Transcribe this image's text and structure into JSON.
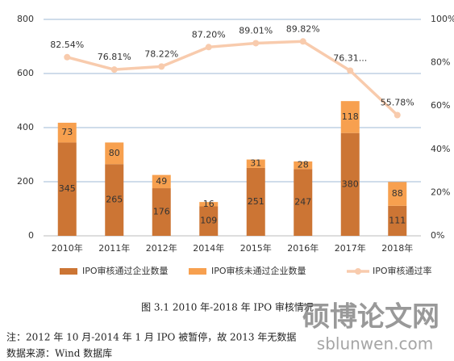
{
  "chart_data": {
    "type": "bar",
    "stacked": true,
    "categories": [
      "2010年",
      "2011年",
      "2012年",
      "2014年",
      "2015年",
      "2016年",
      "2017年",
      "2018年"
    ],
    "series": [
      {
        "name": "IPO审核通过企业数量",
        "type": "bar",
        "color": "#cc7534",
        "values": [
          345,
          265,
          176,
          109,
          251,
          247,
          380,
          111
        ]
      },
      {
        "name": "IPO审核未通过企业数量",
        "type": "bar",
        "color": "#f7a04f",
        "values": [
          73,
          80,
          49,
          16,
          31,
          28,
          118,
          88
        ]
      },
      {
        "name": "IPO审核通过率",
        "type": "line",
        "axis": "y2",
        "color": "#f8cbad",
        "values": [
          82.54,
          76.81,
          78.22,
          87.2,
          89.01,
          89.82,
          76.31,
          55.78
        ],
        "value_labels": [
          "82.54%",
          "76.81%",
          "78.22%",
          "87.20%",
          "89.01%",
          "89.82%",
          "76.31...",
          "55.78%"
        ]
      }
    ],
    "ylim": [
      0,
      800
    ],
    "yticks": [
      0,
      200,
      400,
      600,
      800
    ],
    "y2lim": [
      0,
      100
    ],
    "y2ticks": [
      {
        "value": 0,
        "label": "0%"
      },
      {
        "value": 20,
        "label": "20%"
      },
      {
        "value": 40,
        "label": "40%"
      },
      {
        "value": 60,
        "label": "60%"
      },
      {
        "value": 80,
        "label": "80%"
      },
      {
        "value": 100,
        "label": "100%"
      }
    ],
    "grid": true,
    "legend": "bottom"
  },
  "caption": "图 3.1  2010 年-2018 年 IPO 审核情况",
  "note": "注：2012 年 10 月-2014 年 1 月 IPO 被暂停，故 2013 年无数据",
  "source": "数据来源：Wind 数据库",
  "watermark": {
    "title": "硕博论文网",
    "url": "sblunwen.com"
  }
}
